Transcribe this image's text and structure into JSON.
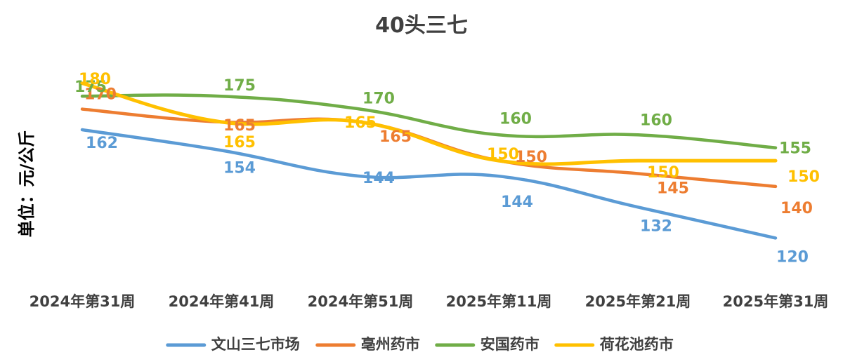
{
  "chart_data": {
    "type": "line",
    "title": "40头三七",
    "ylabel": "单位：元/公斤",
    "xlabel": "",
    "categories": [
      "2024年第31周",
      "2024年第41周",
      "2024年第51周",
      "2025年第11周",
      "2025年第21周",
      "2025年第31周"
    ],
    "ylim": [
      100,
      190
    ],
    "grid": false,
    "legend_position": "bottom",
    "smooth": true,
    "series": [
      {
        "name": "文山三七市场",
        "color": "#5B9BD5",
        "values": [
          162,
          154,
          144,
          144,
          132,
          120
        ]
      },
      {
        "name": "亳州药市",
        "color": "#ED7D31",
        "values": [
          170,
          165,
          165,
          150,
          145,
          140
        ]
      },
      {
        "name": "安国药市",
        "color": "#70AD47",
        "values": [
          175,
          175,
          170,
          160,
          160,
          155
        ]
      },
      {
        "name": "荷花池药市",
        "color": "#FFC000",
        "values": [
          180,
          165,
          165,
          150,
          150,
          150
        ]
      }
    ]
  }
}
